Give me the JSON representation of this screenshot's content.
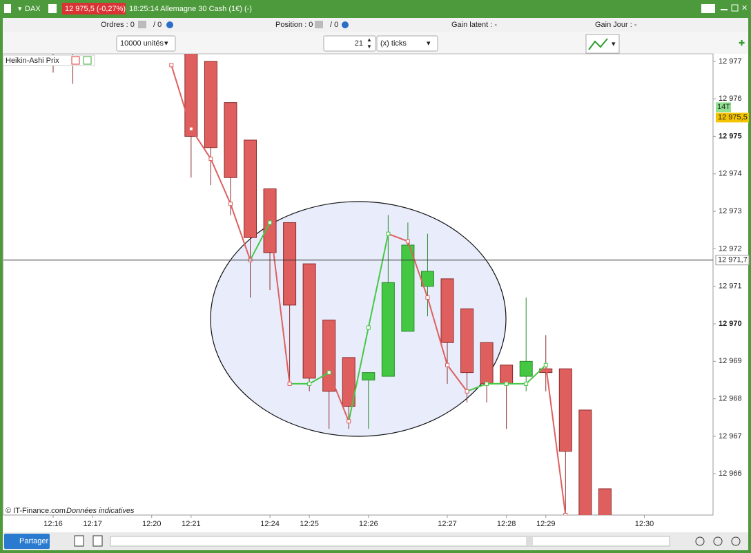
{
  "header": {
    "symbol": "DAX",
    "price_badge": "12 975,5 (-0,27%)",
    "description": "18:25:14 Allemagne 30 Cash (1€) (-)"
  },
  "toolbar": {
    "orders": "Ordres : 0",
    "orders_pending": "/ 0",
    "position": "Position : 0",
    "position_pending": "/ 0",
    "gain_latent": "Gain latent :  -",
    "gain_jour": "Gain Jour :  -"
  },
  "controls": {
    "quantity": "10000 unités",
    "ticks_value": "21",
    "ticks_unit": "(x) ticks"
  },
  "chart_data": {
    "type": "candlestick",
    "legend": "Heikin-Ashi Prix",
    "categories": [
      "12:16",
      null,
      "12:17",
      null,
      null,
      "12:20",
      null,
      "12:21",
      null,
      null,
      null,
      "12:24",
      null,
      "12:25",
      null,
      null,
      "12:26",
      null,
      null,
      null,
      "12:27",
      null,
      null,
      "12:28",
      null,
      "12:29",
      null,
      null,
      null,
      null,
      "12:30"
    ],
    "open": [
      null,
      null,
      null,
      null,
      null,
      null,
      null,
      12977.3,
      12977.0,
      12975.9,
      12974.9,
      12973.6,
      12972.7,
      12971.6,
      12970.1,
      12969.1,
      12968.5,
      12968.6,
      12969.8,
      12971.0,
      12971.2,
      12970.4,
      12969.5,
      12968.9,
      12968.6,
      12968.8,
      12968.8,
      12967.7,
      12965.6,
      null,
      null
    ],
    "high": [
      null,
      null,
      null,
      null,
      null,
      null,
      null,
      12977.5,
      12977.0,
      12975.9,
      12974.9,
      12973.6,
      12972.7,
      12971.6,
      12970.1,
      12969.1,
      12968.7,
      12972.9,
      12972.7,
      12972.4,
      12971.2,
      12970.4,
      12969.5,
      12968.9,
      12970.7,
      12969.7,
      12968.8,
      12967.7,
      12965.6,
      null,
      null
    ],
    "low": [
      12976.7,
      12976.4,
      null,
      null,
      null,
      null,
      null,
      12973.9,
      12973.7,
      12972.9,
      12970.7,
      12970.9,
      12968.4,
      12968.2,
      12967.2,
      12967.2,
      12967.2,
      12968.6,
      12969.8,
      12970.2,
      12968.4,
      12967.9,
      12967.9,
      12967.2,
      12968.2,
      12968.2,
      12964.8,
      12964.8,
      12964.8,
      null,
      null
    ],
    "close": [
      null,
      null,
      null,
      null,
      null,
      null,
      null,
      12975.0,
      12974.7,
      12973.9,
      12972.3,
      12971.9,
      12970.5,
      12968.55,
      12968.2,
      12967.8,
      12968.7,
      12971.1,
      12972.1,
      12971.4,
      12969.5,
      12968.7,
      12968.4,
      12968.4,
      12969.0,
      12968.7,
      12966.6,
      12964.8,
      12964.8,
      null,
      null
    ],
    "line": [
      null,
      null,
      null,
      null,
      null,
      null,
      12976.9,
      12975.2,
      12974.4,
      12973.2,
      12971.7,
      12972.7,
      12968.4,
      12968.4,
      12968.7,
      12967.4,
      12969.9,
      12972.4,
      12972.2,
      12970.7,
      12968.9,
      12968.2,
      12968.4,
      12968.4,
      12968.4,
      12968.9,
      12964.9,
      null,
      null,
      null,
      null
    ],
    "up_color": "#44c844",
    "down_color": "#df5f5f",
    "ylim": [
      12964.9,
      12977.2
    ],
    "yticks": [
      {
        "value": 12966,
        "label": "12 966"
      },
      {
        "value": 12967,
        "label": "12 967"
      },
      {
        "value": 12968,
        "label": "12 968"
      },
      {
        "value": 12969,
        "label": "12 969"
      },
      {
        "value": 12970,
        "label": "12 970"
      },
      {
        "value": 12971,
        "label": "12 971"
      },
      {
        "value": 12972,
        "label": "12 972"
      },
      {
        "value": 12973,
        "label": "12 973"
      },
      {
        "value": 12974,
        "label": "12 974"
      },
      {
        "value": 12975,
        "label": "12 975"
      },
      {
        "value": 12976,
        "label": "12 976"
      },
      {
        "value": 12977,
        "label": "12 977"
      }
    ],
    "cursor_price": {
      "value": 12971.7,
      "label": "12 971,7"
    },
    "last_price": {
      "value": 12975.5,
      "label": "12 975,5"
    },
    "tick_badge": "14T"
  },
  "footer": {
    "copyright": "© IT-Finance.com",
    "notice": "Données indicatives",
    "share": "Partager"
  }
}
